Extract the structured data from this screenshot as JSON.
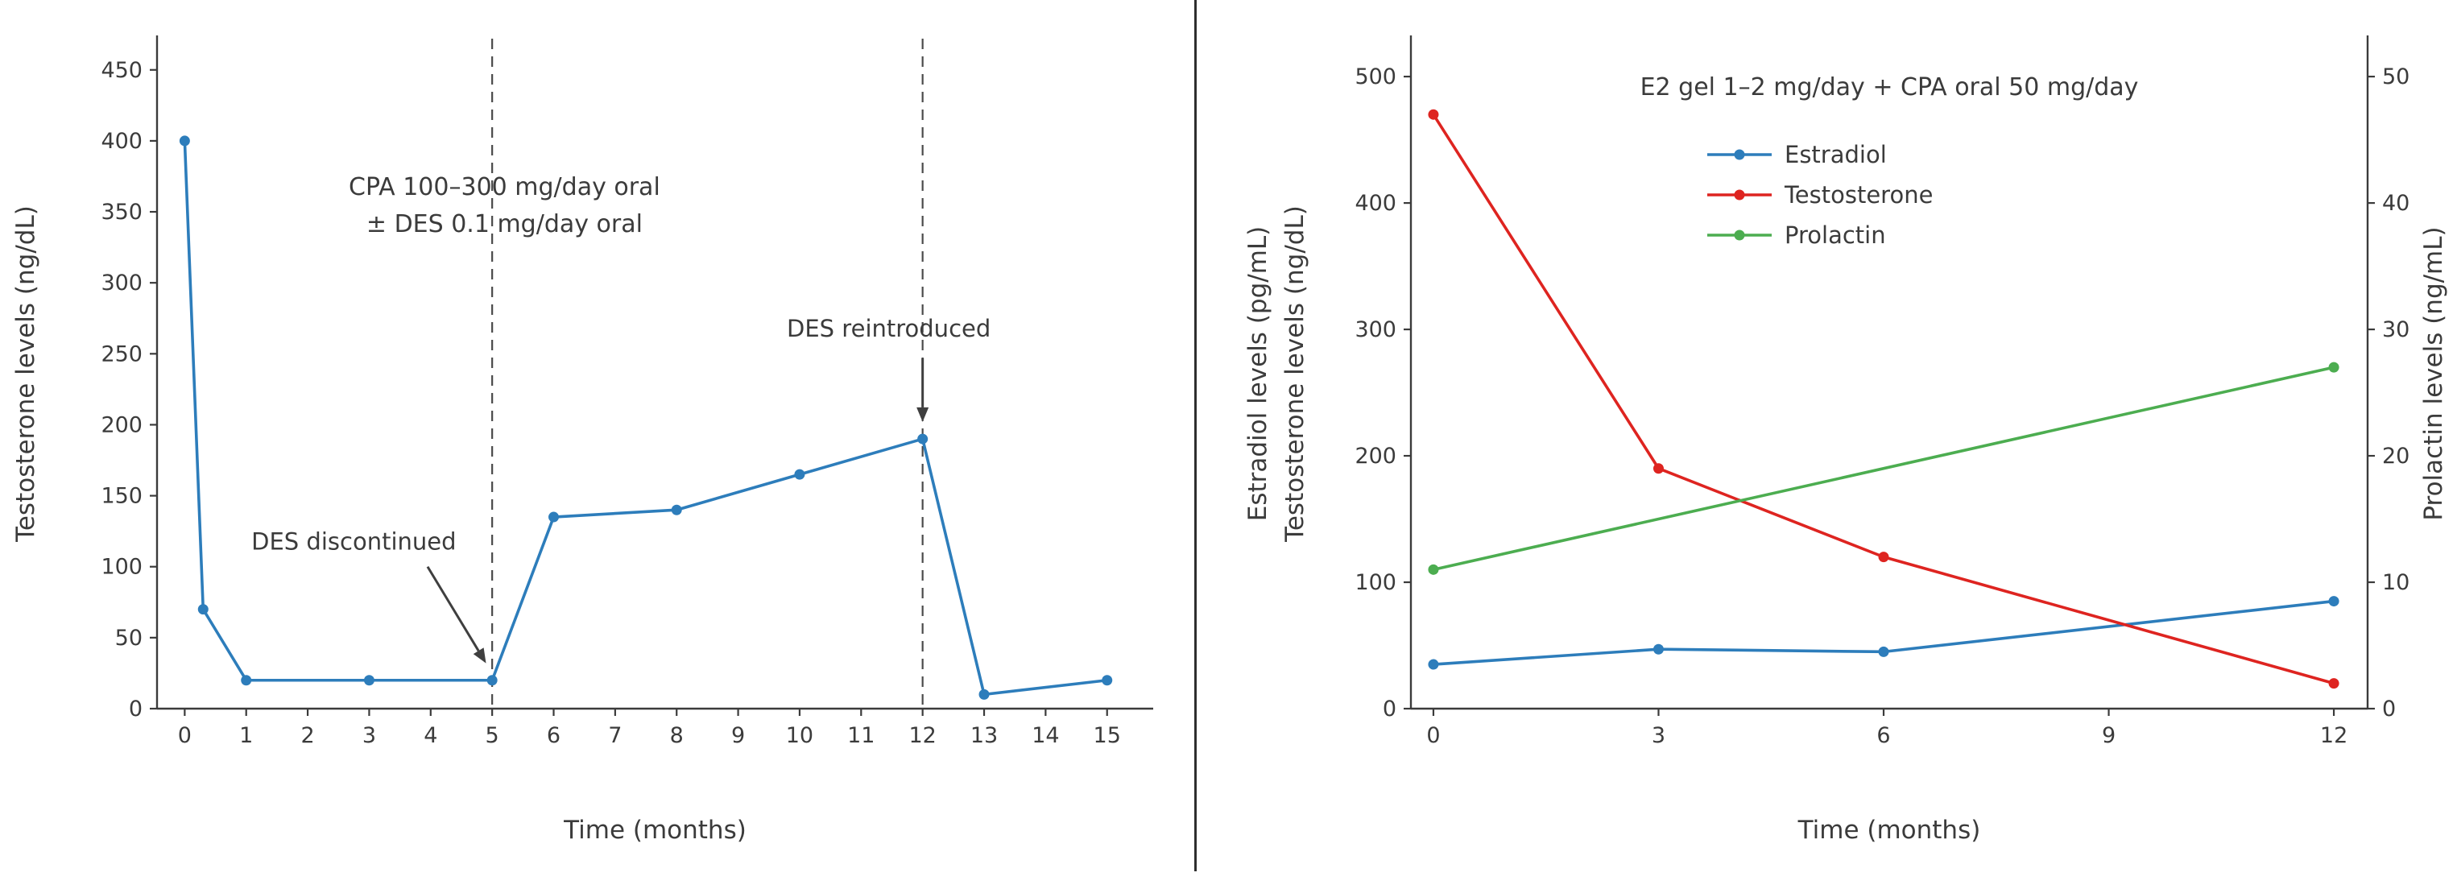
{
  "page": {
    "background": "#ffffff",
    "divider_color": "#2e2e2e"
  },
  "colors": {
    "text": "#3b3b3b",
    "axis": "#3b3b3b",
    "annotation": "#3f3f3f",
    "blue": "#2d7dbb",
    "red": "#de2420",
    "green": "#4cad50"
  },
  "chart_data": [
    {
      "type": "line",
      "title": "",
      "xlabel": "Time (months)",
      "ylabel": "Testosterone levels (ng/dL)",
      "xlim": [
        -0.45,
        15.75
      ],
      "ylim": [
        0,
        472
      ],
      "xticks": [
        0,
        1,
        2,
        3,
        4,
        5,
        6,
        7,
        8,
        9,
        10,
        11,
        12,
        13,
        14,
        15
      ],
      "yticks": [
        0,
        50,
        100,
        150,
        200,
        250,
        300,
        350,
        400,
        450
      ],
      "grid": false,
      "series": [
        {
          "name": "Testosterone",
          "color_key": "blue",
          "x": [
            0,
            0.3,
            1,
            3,
            5,
            6,
            8,
            10,
            12,
            13,
            15
          ],
          "y": [
            400,
            70,
            20,
            20,
            20,
            135,
            140,
            165,
            190,
            10,
            20
          ]
        }
      ],
      "vlines": [
        {
          "x": 5
        },
        {
          "x": 12
        }
      ],
      "text_annotations": [
        {
          "lines": [
            "CPA 100–300 mg/day oral",
            "± DES 0.1 mg/day oral"
          ],
          "x": 5.2,
          "y": 362
        }
      ],
      "arrow_annotations": [
        {
          "text": "DES discontinued",
          "text_x": 2.75,
          "text_y": 112,
          "tail_x": 3.95,
          "tail_y": 100,
          "tip_x": 4.9,
          "tip_y": 32
        },
        {
          "text": "DES reintroduced",
          "text_x": 11.45,
          "text_y": 262,
          "tail_x": 12,
          "tail_y": 247,
          "tip_x": 12,
          "tip_y": 202
        }
      ]
    },
    {
      "type": "line",
      "title": "E2 gel 1–2 mg/day + CPA oral 50 mg/day",
      "xlabel": "Time (months)",
      "ylabel_left_lines": [
        "Estradiol levels (pg/mL)",
        "Testosterone levels (ng/dL)"
      ],
      "ylabel_right": "Prolactin levels (ng/mL)",
      "xlim": [
        -0.3,
        12.45
      ],
      "ylim_left": [
        0,
        530
      ],
      "ylim_right": [
        0,
        53
      ],
      "xticks": [
        0,
        3,
        6,
        9,
        12
      ],
      "yticks_left": [
        0,
        100,
        200,
        300,
        400,
        500
      ],
      "yticks_right": [
        0,
        10,
        20,
        30,
        40,
        50
      ],
      "grid": false,
      "legend_position": "upper-center",
      "series": [
        {
          "name": "Estradiol",
          "axis": "left",
          "color_key": "blue",
          "x": [
            0,
            3,
            6,
            12
          ],
          "y": [
            35,
            47,
            45,
            85
          ]
        },
        {
          "name": "Testosterone",
          "axis": "left",
          "color_key": "red",
          "x": [
            0,
            3,
            6,
            12
          ],
          "y": [
            470,
            190,
            120,
            20
          ]
        },
        {
          "name": "Prolactin",
          "axis": "right",
          "color_key": "green",
          "x": [
            0,
            12
          ],
          "y": [
            11,
            27
          ]
        }
      ],
      "legend": [
        {
          "name": "Estradiol",
          "color_key": "blue"
        },
        {
          "name": "Testosterone",
          "color_key": "red"
        },
        {
          "name": "Prolactin",
          "color_key": "green"
        }
      ]
    }
  ]
}
